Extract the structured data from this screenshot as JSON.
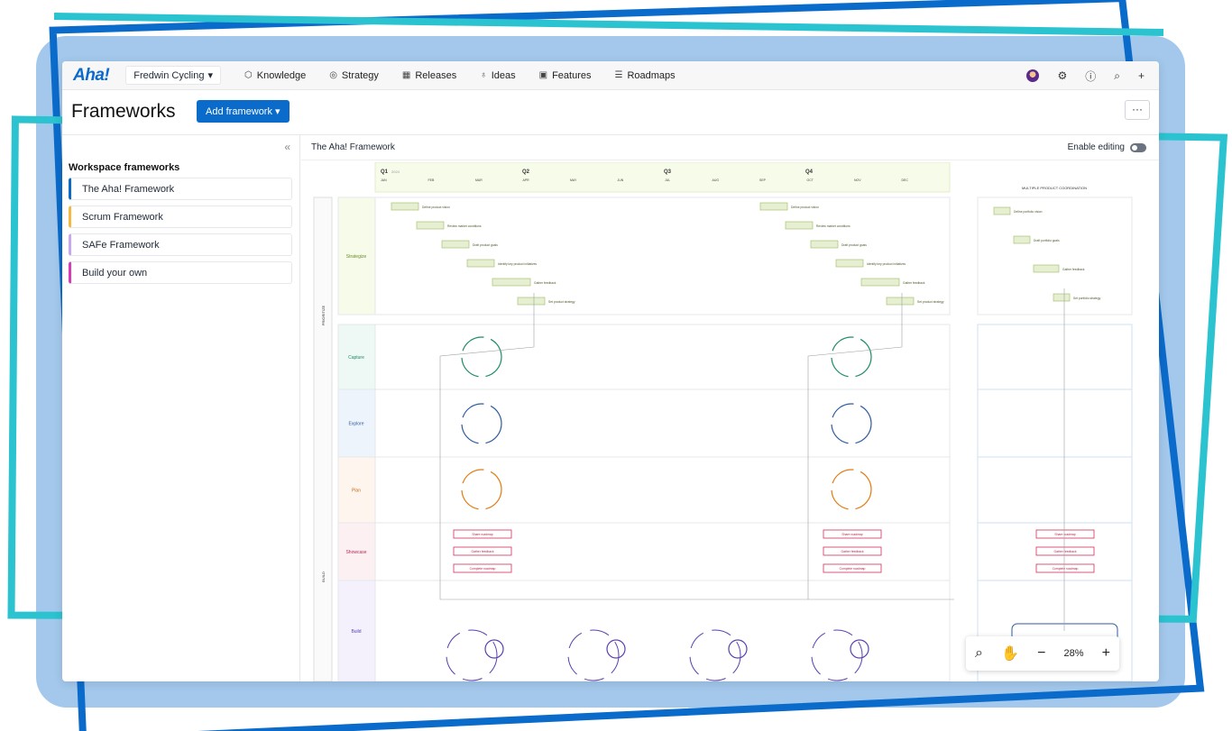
{
  "app": {
    "logo": "Aha!",
    "workspace": "Fredwin Cycling"
  },
  "nav": [
    {
      "label": "Knowledge",
      "icon": "cube-icon"
    },
    {
      "label": "Strategy",
      "icon": "target-icon"
    },
    {
      "label": "Releases",
      "icon": "calendar-icon"
    },
    {
      "label": "Ideas",
      "icon": "bulb-icon"
    },
    {
      "label": "Features",
      "icon": "grid-icon"
    },
    {
      "label": "Roadmaps",
      "icon": "roadmap-icon"
    }
  ],
  "header": {
    "title": "Frameworks",
    "add_button": "Add framework",
    "more": "···"
  },
  "sidebar": {
    "title": "Workspace frameworks",
    "items": [
      {
        "label": "The Aha! Framework",
        "color": "#0b6bcb"
      },
      {
        "label": "Scrum Framework",
        "color": "#f5b942"
      },
      {
        "label": "SAFe Framework",
        "color": "#c7a8f0"
      },
      {
        "label": "Build your own",
        "color": "#d63bb8"
      }
    ]
  },
  "main": {
    "title": "The Aha! Framework",
    "edit_label": "Enable editing"
  },
  "diagram": {
    "quarters": [
      "Q1",
      "Q2",
      "Q3",
      "Q4"
    ],
    "quarter_year": "2024",
    "months": [
      "JAN",
      "FEB",
      "MAR",
      "APR",
      "MAY",
      "JUN",
      "JUL",
      "AUG",
      "SEP",
      "OCT",
      "NOV",
      "DEC"
    ],
    "right_title": "MULTIPLE PRODUCT COORDINATION",
    "phase_labels": [
      "PRIORITIZE",
      "BUILD"
    ],
    "rows": [
      "Strategize",
      "Capture",
      "Explore",
      "Plan",
      "Showcase",
      "Build"
    ],
    "strategy_steps": [
      "Define product vision",
      "Review market conditions",
      "Draft product goals",
      "Identify key product initiatives",
      "Gather feedback",
      "Set product strategy"
    ],
    "portfolio_steps": [
      "Define portfolio vision",
      "Draft portfolio goals",
      "Gather feedback",
      "Set portfolio strategy"
    ],
    "showcase_steps": [
      "Share roadmap",
      "Gather feedback",
      "Complete roadmap"
    ]
  },
  "zoom": {
    "level": "28%",
    "minus": "−",
    "plus": "+"
  }
}
